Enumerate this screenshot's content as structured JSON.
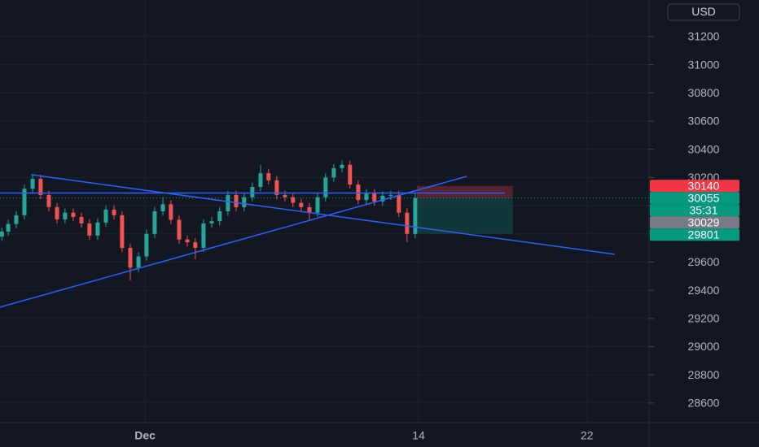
{
  "chart_data": {
    "type": "candlestick",
    "currency": "USD",
    "xlim": [
      -5.89,
      24.95
    ],
    "ylim": [
      28461,
      31459
    ],
    "xticks": [
      {
        "value": 1,
        "label": "Dec"
      },
      14,
      22
    ],
    "yticks": [
      28600,
      28800,
      29000,
      29200,
      29400,
      29600,
      29800,
      30000,
      30200,
      30400,
      30600,
      30800,
      31000,
      31200
    ],
    "grid": true,
    "up_color": "#26a69a",
    "down_color": "#ef5350",
    "candles": {
      "x": [
        -5.8,
        -5.5,
        -5.12,
        -4.73,
        -4.34,
        -3.96,
        -3.57,
        -3.18,
        -2.8,
        -2.41,
        -2.02,
        -1.64,
        -1.25,
        -0.86,
        -0.47,
        -0.09,
        0.3,
        0.69,
        1.07,
        1.46,
        1.85,
        2.23,
        2.62,
        3.01,
        3.39,
        3.78,
        4.17,
        4.55,
        4.94,
        5.33,
        5.71,
        6.1,
        6.49,
        6.87,
        7.26,
        7.65,
        8.03,
        8.42,
        8.81,
        9.2,
        9.58,
        9.97,
        10.36,
        10.74,
        11.13,
        11.52,
        11.9,
        12.29,
        12.68,
        13.06,
        13.45,
        13.84
      ],
      "open": [
        29780,
        29816,
        29870,
        29932,
        30120,
        30190,
        30076,
        29990,
        29903,
        29950,
        29920,
        29874,
        29788,
        29880,
        29972,
        29932,
        29700,
        29560,
        29640,
        29800,
        29960,
        30010,
        29900,
        29760,
        29740,
        29701,
        29874,
        29890,
        29960,
        30076,
        29989,
        30060,
        30133,
        30230,
        30180,
        30076,
        30060,
        30020,
        29989,
        29950,
        30060,
        30200,
        30266,
        30290,
        30150,
        30040,
        30087,
        30030,
        30070,
        30076,
        29950,
        29800
      ],
      "high": [
        29846,
        29900,
        29962,
        30150,
        30225,
        30220,
        30106,
        30020,
        29980,
        29980,
        29950,
        29904,
        29910,
        30002,
        30002,
        29962,
        29730,
        29670,
        29830,
        29990,
        30060,
        30040,
        29930,
        29790,
        29770,
        29904,
        29920,
        29990,
        30106,
        30106,
        30090,
        30163,
        30290,
        30260,
        30210,
        30106,
        30090,
        30050,
        30019,
        30090,
        30230,
        30296,
        30320,
        30320,
        30180,
        30117,
        30117,
        30100,
        30106,
        30106,
        29980,
        30085
      ],
      "low": [
        29750,
        29786,
        29840,
        29902,
        30090,
        30046,
        29960,
        29873,
        29873,
        29890,
        29844,
        29758,
        29758,
        29850,
        29902,
        29670,
        29470,
        29530,
        29610,
        29770,
        29930,
        29870,
        29730,
        29710,
        29620,
        29671,
        29844,
        29860,
        29930,
        29959,
        29959,
        30030,
        30103,
        30150,
        30046,
        30030,
        29990,
        29959,
        29900,
        29920,
        30030,
        30170,
        30236,
        30120,
        30010,
        30010,
        30000,
        30000,
        30040,
        29920,
        29740,
        29770
      ],
      "close": [
        29816,
        29870,
        29932,
        30120,
        30190,
        30076,
        29990,
        29903,
        29950,
        29920,
        29874,
        29788,
        29880,
        29972,
        29932,
        29700,
        29560,
        29640,
        29800,
        29960,
        30010,
        29900,
        29760,
        29740,
        29701,
        29874,
        29890,
        29960,
        30076,
        29989,
        30060,
        30133,
        30230,
        30180,
        30076,
        30060,
        30020,
        29989,
        29950,
        30060,
        30200,
        30266,
        30290,
        30150,
        30040,
        30087,
        30030,
        30070,
        30076,
        29950,
        29800,
        30055
      ]
    },
    "trendline_color": "#2962ff",
    "trendlines": [
      {
        "x": [
          -4.42,
          23.32
        ],
        "y": [
          30220,
          29655
        ]
      },
      {
        "x": [
          -5.89,
          16.28
        ],
        "y": [
          29280,
          30208
        ]
      },
      {
        "x": [
          -5.89,
          18.1
        ],
        "y": [
          30090,
          30090
        ]
      }
    ],
    "position_x": [
      13.92,
      18.48
    ],
    "price_tags": [
      {
        "value": 30140,
        "color": "#f23645"
      },
      {
        "value": 30055,
        "color": "#089981"
      },
      {
        "value": 30029,
        "color": "#787b86"
      },
      {
        "value": 29801,
        "color": "#089981"
      }
    ],
    "countdown": "35:31"
  }
}
